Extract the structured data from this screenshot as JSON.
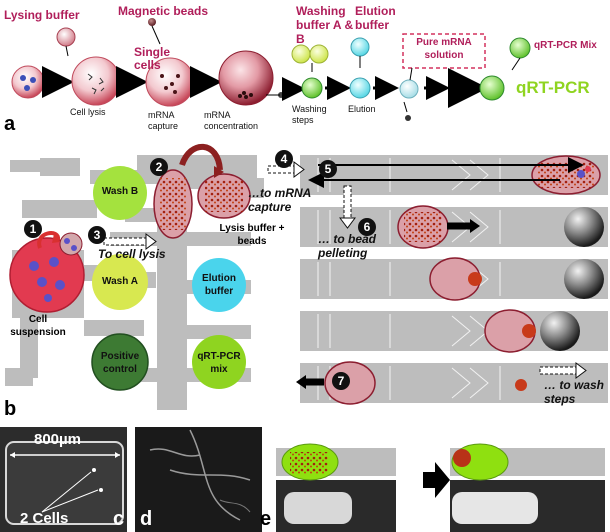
{
  "panel_a": {
    "letter": "a",
    "lysing_buffer": "Lysing buffer",
    "magnetic_beads": "Magnetic beads",
    "single_cells": "Single cells",
    "washing_buffer": "Washing buffer A & B",
    "elution_buffer": "Elution buffer",
    "pure_mrna": "Pure mRNA solution",
    "qrt_mix": "qRT-PCR Mix",
    "qrt": "qRT-PCR",
    "cell_lysis": "Cell lysis",
    "mrna_capture": "mRNA capture",
    "mrna_concentration": "mRNA concentration",
    "washing_steps": "Washing steps",
    "elution": "Elution"
  },
  "panel_b": {
    "letter": "b",
    "wash_b": "Wash B",
    "wash_a": "Wash A",
    "elution_buffer": "Elution buffer",
    "positive_control": "Positive control",
    "qrt_mix": "qRT-PCR mix",
    "cell_suspension": "Cell suspension",
    "lysis_beads": "Lysis buffer + beads",
    "to_cell_lysis": "To cell lysis",
    "to_mrna_capture": "…to mRNA capture",
    "to_bead_pelleting": "… to bead pelleting",
    "to_wash_steps": "… to wash steps",
    "steps": [
      "1",
      "2",
      "3",
      "4",
      "5",
      "6",
      "7"
    ]
  },
  "panel_c": {
    "letter": "c",
    "scale": "800µm",
    "cells": "2 Cells"
  },
  "panel_d": {
    "letter": "d"
  },
  "panel_e": {
    "letter": "e"
  },
  "colors": {
    "label_pink": "#b01e5a",
    "qrt_green": "#8fd420",
    "chip_gray": "#b9b9b9",
    "wash_green": "#a4e23e",
    "elution_cyan": "#4ad4ec",
    "positive_green": "#3d7a33",
    "cell_red": "#e63a50"
  }
}
